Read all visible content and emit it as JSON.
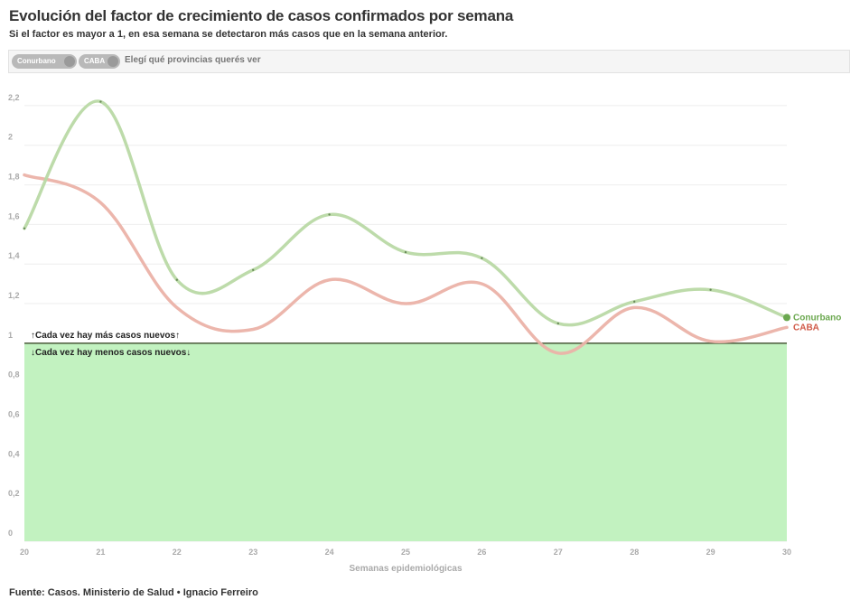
{
  "header": {
    "title": "Evolución del factor de crecimiento de casos confirmados por semana",
    "subtitle": "Si el factor es mayor a 1, en esa semana se detectaron más casos que en la semana anterior."
  },
  "filter": {
    "pills": [
      "Conurbano",
      "CABA"
    ],
    "label": "Elegí qué provincias querés ver"
  },
  "annotations": {
    "above": "↑Cada vez hay más casos nuevos↑",
    "below": "↓Cada vez hay menos casos nuevos↓"
  },
  "colors": {
    "conurbano_line": "#b9d9a5",
    "conurbano_label": "#6ba84f",
    "caba_line": "#ebb2a8",
    "caba_label": "#d05a48",
    "below_area": "#c2f2c0",
    "baseline": "#4a5a3a",
    "axis_text": "#aaaaaa",
    "grid": "#eeeeee"
  },
  "chart_data": {
    "type": "line",
    "xlabel": "Semanas epidemiológicas",
    "ylabel": "",
    "x": [
      20,
      21,
      22,
      23,
      24,
      25,
      26,
      27,
      28,
      29,
      30
    ],
    "xlim": [
      20,
      30
    ],
    "ylim": [
      0,
      2.3
    ],
    "y_ticks": [
      "0",
      "0,2",
      "0,4",
      "0,6",
      "0,8",
      "1",
      "1,2",
      "1,4",
      "1,6",
      "1,8",
      "2",
      "2,2"
    ],
    "y_tick_values": [
      0,
      0.2,
      0.4,
      0.6,
      0.8,
      1,
      1.2,
      1.4,
      1.6,
      1.8,
      2,
      2.2
    ],
    "threshold": 1,
    "series": [
      {
        "name": "Conurbano",
        "values": [
          1.58,
          2.22,
          1.32,
          1.37,
          1.65,
          1.46,
          1.43,
          1.1,
          1.21,
          1.27,
          1.13
        ]
      },
      {
        "name": "CABA",
        "values": [
          1.85,
          1.71,
          1.18,
          1.07,
          1.32,
          1.2,
          1.3,
          0.95,
          1.18,
          1.01,
          1.08
        ]
      }
    ]
  },
  "footer": {
    "source": "Fuente: Casos. Ministerio de Salud • Ignacio Ferreiro"
  }
}
